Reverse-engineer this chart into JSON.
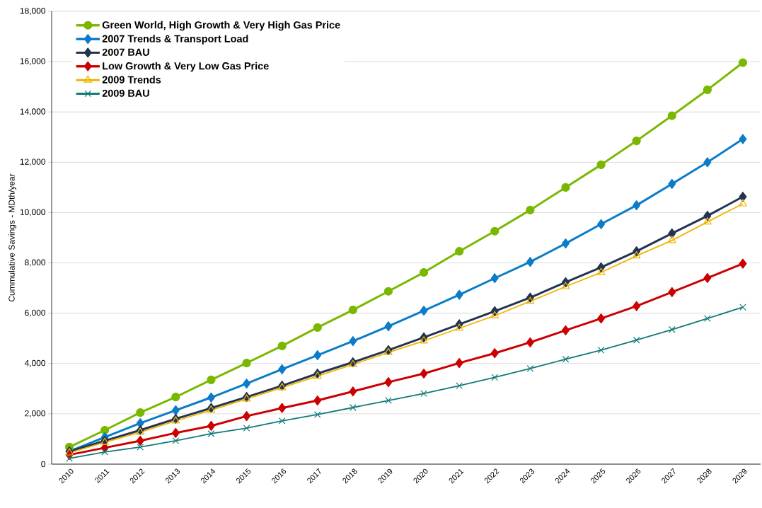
{
  "chart_data": {
    "type": "line",
    "ylabel": "Cummulative Savings - MDth/year",
    "categories": [
      "2010",
      "2011",
      "2012",
      "2013",
      "2014",
      "2015",
      "2016",
      "2017",
      "2018",
      "2019",
      "2020",
      "2021",
      "2022",
      "2023",
      "2024",
      "2025",
      "2026",
      "2027",
      "2028",
      "2029"
    ],
    "ylim": [
      0,
      18000
    ],
    "yticks": [
      {
        "value": 0,
        "label": "0"
      },
      {
        "value": 2000,
        "label": "2,000"
      },
      {
        "value": 4000,
        "label": "4,000"
      },
      {
        "value": 6000,
        "label": "6,000"
      },
      {
        "value": 8000,
        "label": "8,000"
      },
      {
        "value": 10000,
        "label": "10,000"
      },
      {
        "value": 12000,
        "label": "12,000"
      },
      {
        "value": 14000,
        "label": "14,000"
      },
      {
        "value": 16000,
        "label": "16,000"
      },
      {
        "value": 18000,
        "label": "18,000"
      }
    ],
    "grid": "y",
    "legend": "top left",
    "line_style": "solid",
    "series": [
      {
        "name": "Green World, High Growth & Very High Gas Price",
        "color": "#7ab800",
        "marker": "circle",
        "values": [
          680,
          1350,
          2050,
          2670,
          3350,
          4020,
          4700,
          5430,
          6130,
          6870,
          7620,
          8460,
          9260,
          10100,
          11000,
          11900,
          12850,
          13850,
          14880,
          15960
        ]
      },
      {
        "name": "2007 Trends & Transport Load",
        "color": "#0a7cc8",
        "marker": "diamond",
        "values": [
          510,
          1070,
          1630,
          2140,
          2650,
          3200,
          3770,
          4330,
          4890,
          5480,
          6100,
          6730,
          7390,
          8040,
          8770,
          9540,
          10290,
          11140,
          12000,
          12920
        ]
      },
      {
        "name": "2007 BAU",
        "color": "#233450",
        "marker": "diamond",
        "values": [
          500,
          930,
          1350,
          1800,
          2230,
          2670,
          3120,
          3600,
          4050,
          4530,
          5040,
          5560,
          6080,
          6620,
          7230,
          7820,
          8460,
          9170,
          9870,
          10630
        ]
      },
      {
        "name": "Low Growth & Very Low Gas Price",
        "color": "#cc0000",
        "marker": "diamond",
        "values": [
          370,
          650,
          930,
          1240,
          1520,
          1910,
          2230,
          2530,
          2890,
          3260,
          3600,
          4020,
          4410,
          4840,
          5320,
          5790,
          6280,
          6840,
          7400,
          7970
        ]
      },
      {
        "name": "2009 Trends",
        "color": "#f0b400",
        "marker": "triangle",
        "values": [
          450,
          870,
          1270,
          1720,
          2150,
          2590,
          3040,
          3500,
          3960,
          4440,
          4900,
          5400,
          5900,
          6470,
          7060,
          7620,
          8280,
          8890,
          9630,
          10350
        ]
      },
      {
        "name": "2009 BAU",
        "color": "#127a78",
        "marker": "cross",
        "values": [
          230,
          480,
          680,
          930,
          1210,
          1430,
          1720,
          1970,
          2250,
          2530,
          2810,
          3120,
          3450,
          3800,
          4170,
          4530,
          4930,
          5350,
          5790,
          6240
        ]
      }
    ]
  }
}
